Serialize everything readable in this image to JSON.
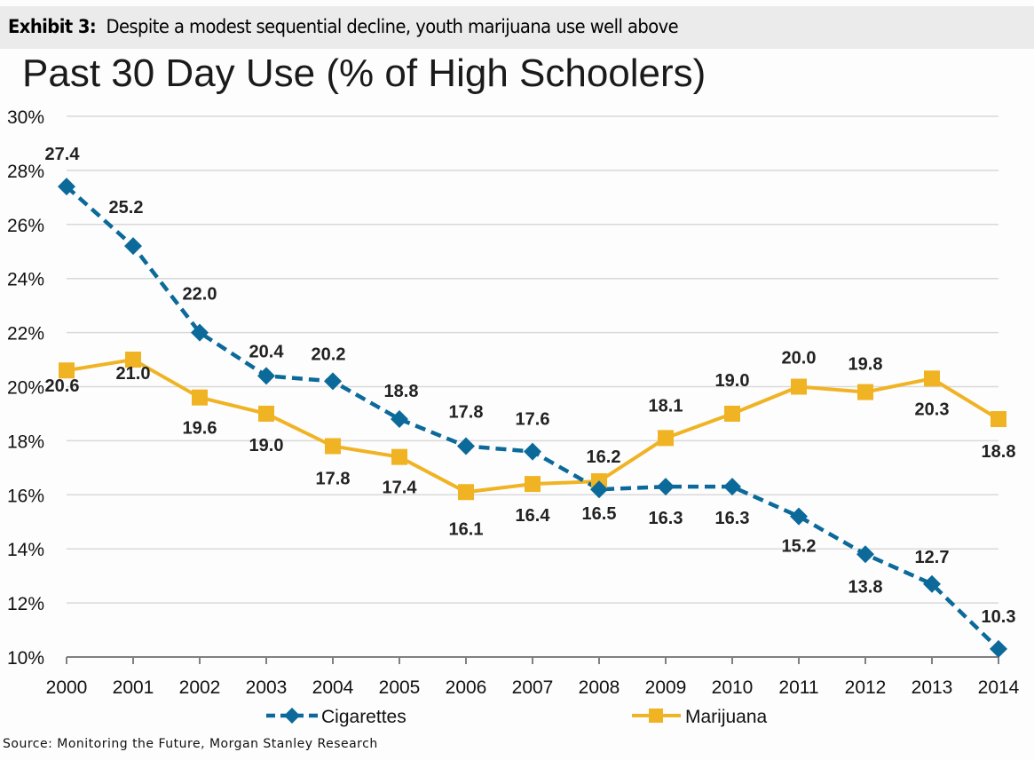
{
  "header": {
    "exhibit_label": "Exhibit 3:",
    "exhibit_text": "Despite a modest sequential decline, youth marijuana use well above"
  },
  "footer": {
    "source": "Source: Monitoring the Future, Morgan Stanley Research"
  },
  "colors": {
    "cigarettes": "#0b6a99",
    "marijuana": "#f0b323",
    "grid": "#d9d9d9",
    "axis": "#808080"
  },
  "chart_data": {
    "type": "line",
    "title": "Past 30 Day Use (% of High Schoolers)",
    "xlabel": "",
    "ylabel": "",
    "x": [
      "2000",
      "2001",
      "2002",
      "2003",
      "2004",
      "2005",
      "2006",
      "2007",
      "2008",
      "2009",
      "2010",
      "2011",
      "2012",
      "2013",
      "2014"
    ],
    "ylim": [
      10,
      30
    ],
    "yticks": [
      10,
      12,
      14,
      16,
      18,
      20,
      22,
      24,
      26,
      28,
      30
    ],
    "ytick_labels": [
      "10%",
      "12%",
      "14%",
      "16%",
      "18%",
      "20%",
      "22%",
      "24%",
      "26%",
      "28%",
      "30%"
    ],
    "grid": true,
    "legend_position": "bottom",
    "series": [
      {
        "name": "Cigarettes",
        "style": "dashed",
        "marker": "diamond",
        "values": [
          27.4,
          25.2,
          22.0,
          20.4,
          20.2,
          18.8,
          17.8,
          17.6,
          16.2,
          16.3,
          16.3,
          15.2,
          13.8,
          12.7,
          10.3
        ],
        "labels": [
          "27.4",
          "25.2",
          "22.0",
          "20.4",
          "20.2",
          "18.8",
          "17.8",
          "17.6",
          "16.2",
          "16.3",
          "16.3",
          "15.2",
          "13.8",
          "12.7",
          "10.3"
        ]
      },
      {
        "name": "Marijuana",
        "style": "solid",
        "marker": "square",
        "values": [
          20.6,
          21.0,
          19.6,
          19.0,
          17.8,
          17.4,
          16.1,
          16.4,
          16.5,
          18.1,
          19.0,
          20.0,
          19.8,
          20.3,
          18.8
        ],
        "labels": [
          "20.6",
          "21.0",
          "19.6",
          "19.0",
          "17.8",
          "17.4",
          "16.1",
          "16.4",
          "16.5",
          "18.1",
          "19.0",
          "20.0",
          "19.8",
          "20.3",
          "18.8"
        ]
      }
    ]
  }
}
